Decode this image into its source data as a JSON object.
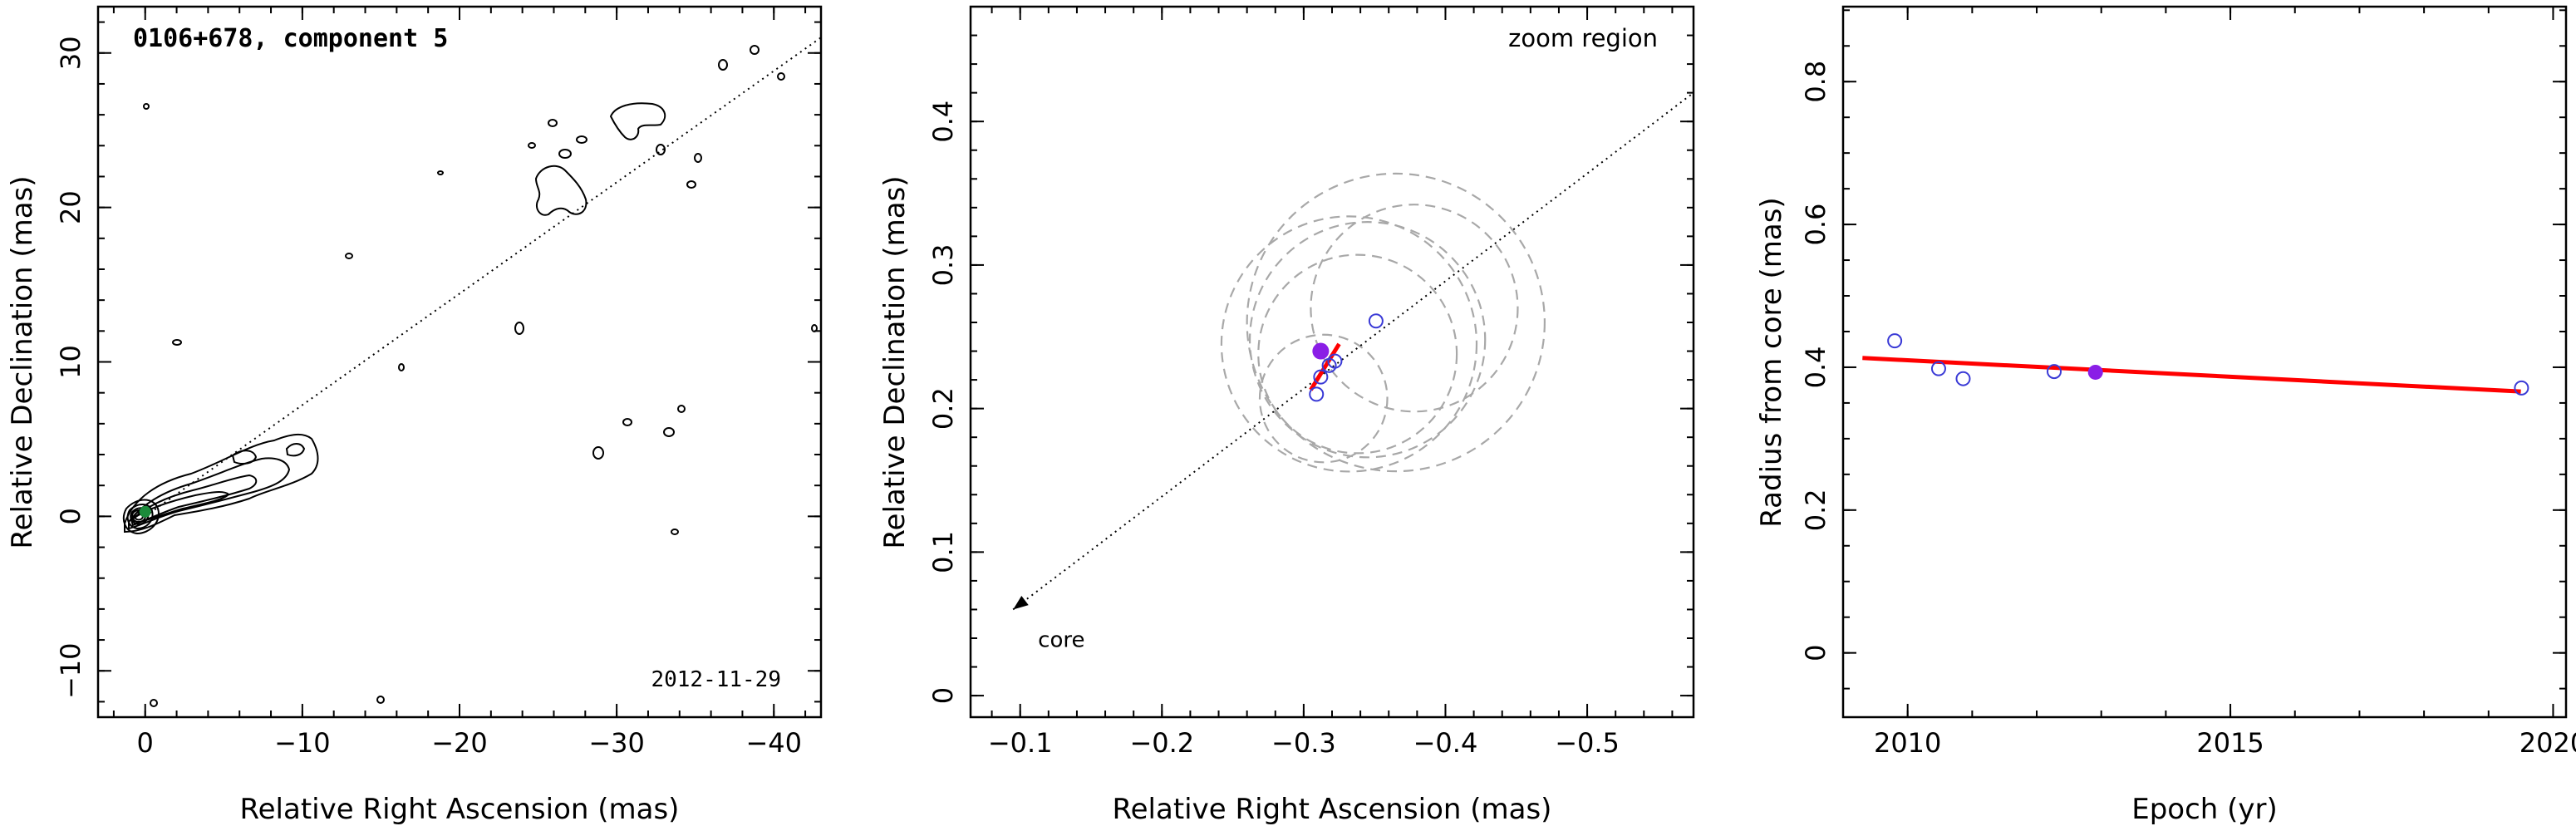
{
  "chart_data": [
    {
      "type": "scatter",
      "subtype": "contour-map",
      "title": "0106+678, component 5",
      "annotation": "2012-11-29",
      "xlabel": "Relative Right Ascension (mas)",
      "ylabel": "Relative Declination (mas)",
      "xlim": [
        3,
        -43
      ],
      "ylim": [
        -13,
        33
      ],
      "xticks": [
        0,
        -10,
        -20,
        -30,
        -40
      ],
      "xtick_labels": [
        "0",
        "−10",
        "−20",
        "−30",
        "−40"
      ],
      "yticks": [
        -10,
        0,
        10,
        20,
        30
      ],
      "ytick_labels": [
        "−10",
        "0",
        "10",
        "20",
        "30"
      ],
      "jet_axis_line": {
        "x": [
          0,
          -43
        ],
        "y": [
          0,
          31
        ]
      },
      "component_marker": {
        "x": 0,
        "y": 0.3,
        "color": "#1b8a3a"
      },
      "contour_color": "#000000"
    },
    {
      "type": "scatter",
      "title": "zoom region",
      "xlabel": "Relative Right Ascension (mas)",
      "ylabel": "Relative Declination (mas)",
      "xlim": [
        -0.065,
        -0.575
      ],
      "ylim": [
        -0.015,
        0.48
      ],
      "xticks": [
        -0.1,
        -0.2,
        -0.3,
        -0.4,
        -0.5
      ],
      "xtick_labels": [
        "−0.1",
        "−0.2",
        "−0.3",
        "−0.4",
        "−0.5"
      ],
      "yticks": [
        0,
        0.1,
        0.2,
        0.3,
        0.4
      ],
      "ytick_labels": [
        "0",
        "0.1",
        "0.2",
        "0.3",
        "0.4"
      ],
      "core_label": "core",
      "core_arrow_tip": {
        "x": -0.095,
        "y": 0.06
      },
      "jet_axis_line": {
        "x": [
          -0.095,
          -0.575
        ],
        "y": [
          0.06,
          0.42
        ]
      },
      "open_points": {
        "color": "#3a3ad6",
        "x": [
          -0.309,
          -0.312,
          -0.318,
          -0.322,
          -0.351
        ],
        "y": [
          0.21,
          0.222,
          0.23,
          0.233,
          0.261
        ]
      },
      "filled_point": {
        "x": -0.312,
        "y": 0.24,
        "color": "#8a1ee6"
      },
      "fit_segment": {
        "x": [
          -0.305,
          -0.325
        ],
        "y": [
          0.213,
          0.245
        ],
        "color": "#ff0000"
      },
      "beam_circles": {
        "color": "#a8a8a8",
        "items": [
          {
            "x": -0.365,
            "y": 0.26,
            "r": 0.105
          },
          {
            "x": -0.345,
            "y": 0.248,
            "r": 0.083
          },
          {
            "x": -0.338,
            "y": 0.238,
            "r": 0.07
          },
          {
            "x": -0.332,
            "y": 0.245,
            "r": 0.09
          },
          {
            "x": -0.378,
            "y": 0.27,
            "r": 0.073
          },
          {
            "x": -0.314,
            "y": 0.207,
            "r": 0.045
          }
        ]
      }
    },
    {
      "type": "scatter",
      "xlabel": "Epoch (yr)",
      "ylabel": "Radius from core (mas)",
      "xlim": [
        2009,
        2020.2
      ],
      "ylim": [
        -0.09,
        0.905
      ],
      "xticks": [
        2010,
        2015,
        2020
      ],
      "xtick_labels": [
        "2010",
        "2015",
        "2020"
      ],
      "yticks": [
        0,
        0.2,
        0.4,
        0.6,
        0.8
      ],
      "ytick_labels": [
        "0",
        "0.2",
        "0.4",
        "0.6",
        "0.8"
      ],
      "open_points": {
        "color": "#3a3ad6",
        "x": [
          2009.8,
          2010.48,
          2010.86,
          2012.27,
          2019.51
        ],
        "y": [
          0.437,
          0.398,
          0.384,
          0.394,
          0.371
        ]
      },
      "filled_point": {
        "x": 2012.91,
        "y": 0.393,
        "color": "#8a1ee6"
      },
      "fit_line": {
        "x": [
          2009.3,
          2019.5
        ],
        "y": [
          0.413,
          0.366
        ],
        "color": "#ff0000"
      }
    }
  ]
}
